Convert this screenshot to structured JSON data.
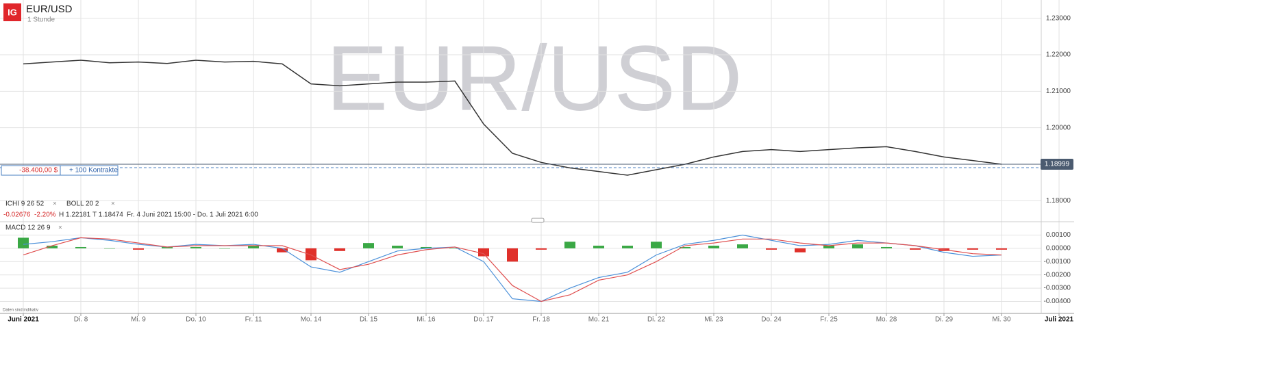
{
  "header": {
    "logo": "IG",
    "symbol": "EUR/USD",
    "interval": "1 Stunde"
  },
  "watermark": "EUR/USD",
  "position": {
    "pnl": "-38.400,00 $",
    "size": "+ 100 Kontrakte"
  },
  "indicators": {
    "ichi": "ICHI 9 26 52",
    "boll": "BOLL 20 2",
    "macd": "MACD 12 26 9"
  },
  "stats": {
    "change": "-0.02676",
    "change_pct": "-2.20%",
    "high": "H 1.22181",
    "low": "T 1.18474",
    "range": "Fr. 4 Juni 2021 15:00 - Do. 1 Juli 2021 6:00"
  },
  "footnote": "Daten sind indikativ",
  "chart_data": [
    {
      "type": "line",
      "categories": [
        "Juni 2021",
        null,
        "Di. 8",
        null,
        "Mi. 9",
        null,
        "Do. 10",
        null,
        "Fr. 11",
        null,
        "Mo. 14",
        null,
        "Di. 15",
        null,
        "Mi. 16",
        null,
        "Do. 17",
        null,
        "Fr. 18",
        null,
        "Mo. 21",
        null,
        "Di. 22",
        null,
        "Mi. 23",
        null,
        "Do. 24",
        null,
        "Fr. 25",
        null,
        "Mo. 28",
        null,
        "Di. 29",
        null,
        "Mi. 30",
        null,
        "Juli 2021"
      ],
      "series": [
        {
          "color": "#333333",
          "values": [
            1.2175,
            1.218,
            1.2185,
            1.2178,
            1.218,
            1.2176,
            1.2185,
            1.218,
            1.2182,
            1.2175,
            1.212,
            1.2115,
            1.212,
            1.2125,
            1.2125,
            1.2128,
            1.201,
            1.193,
            1.1905,
            1.189,
            1.188,
            1.187,
            1.1885,
            1.19,
            1.192,
            1.1935,
            1.194,
            1.1935,
            1.194,
            1.1945,
            1.1948,
            1.1935,
            1.192,
            1.191,
            1.19,
            null,
            null
          ]
        }
      ],
      "ylim": [
        1.175,
        1.235
      ],
      "yticks": [
        {
          "value": 1.18,
          "label": "1.18000"
        },
        {
          "value": 1.2,
          "label": "1.20000"
        },
        {
          "value": 1.21,
          "label": "1.21000"
        },
        {
          "value": 1.22,
          "label": "1.22000"
        },
        {
          "value": 1.23,
          "label": "1.23000"
        }
      ],
      "grid": true,
      "last_price": 1.18999
    },
    {
      "type": "macd",
      "histogram": {
        "up_color": "#3aa845",
        "down_color": "#e0302a",
        "values": [
          0.0008,
          0.0002,
          0.0001,
          0.0,
          -0.0001,
          0.0001,
          0.0001,
          0.0,
          0.0002,
          -0.0003,
          -0.0009,
          -0.0002,
          0.0004,
          0.0002,
          0.0001,
          0.0,
          -0.0006,
          -0.001,
          -0.0001,
          0.0005,
          0.0002,
          0.0002,
          0.0005,
          0.0001,
          0.0002,
          0.0003,
          -0.0001,
          -0.0003,
          0.0002,
          0.0003,
          0.0001,
          -0.0001,
          -0.0002,
          -0.0001,
          -0.0001,
          null,
          null
        ]
      },
      "series": [
        {
          "color": "#4a90d9",
          "values": [
            0.0003,
            0.0005,
            0.0008,
            0.0006,
            0.0003,
            0.0001,
            0.0003,
            0.0002,
            0.0003,
            0.0,
            -0.0014,
            -0.0018,
            -0.001,
            -0.0002,
            0.0,
            0.0001,
            -0.001,
            -0.0038,
            -0.004,
            -0.003,
            -0.0022,
            -0.0018,
            -0.0005,
            0.0003,
            0.0006,
            0.001,
            0.0006,
            0.0002,
            0.0003,
            0.0006,
            0.0004,
            0.0002,
            -0.0003,
            -0.0006,
            -0.0005,
            null,
            null
          ]
        },
        {
          "color": "#e05050",
          "values": [
            -0.0005,
            0.0002,
            0.0008,
            0.0007,
            0.0004,
            0.0001,
            0.0002,
            0.0002,
            0.0002,
            0.0002,
            -0.0005,
            -0.0016,
            -0.0012,
            -0.0005,
            -0.0001,
            0.0001,
            -0.0004,
            -0.0028,
            -0.004,
            -0.0035,
            -0.0024,
            -0.002,
            -0.001,
            0.0002,
            0.0004,
            0.0007,
            0.0007,
            0.0004,
            0.0002,
            0.0004,
            0.0004,
            0.0002,
            -0.0001,
            -0.0004,
            -0.0005,
            null,
            null
          ]
        }
      ],
      "ylim": [
        -0.0048,
        0.0018
      ],
      "yticks": [
        {
          "value": 0.001,
          "label": "0.00100"
        },
        {
          "value": 0,
          "label": "0.00000"
        },
        {
          "value": -0.001,
          "label": "-0.00100"
        },
        {
          "value": -0.002,
          "label": "-0.00200"
        },
        {
          "value": -0.003,
          "label": "-0.00300"
        },
        {
          "value": -0.004,
          "label": "-0.00400"
        }
      ],
      "grid": true
    }
  ]
}
